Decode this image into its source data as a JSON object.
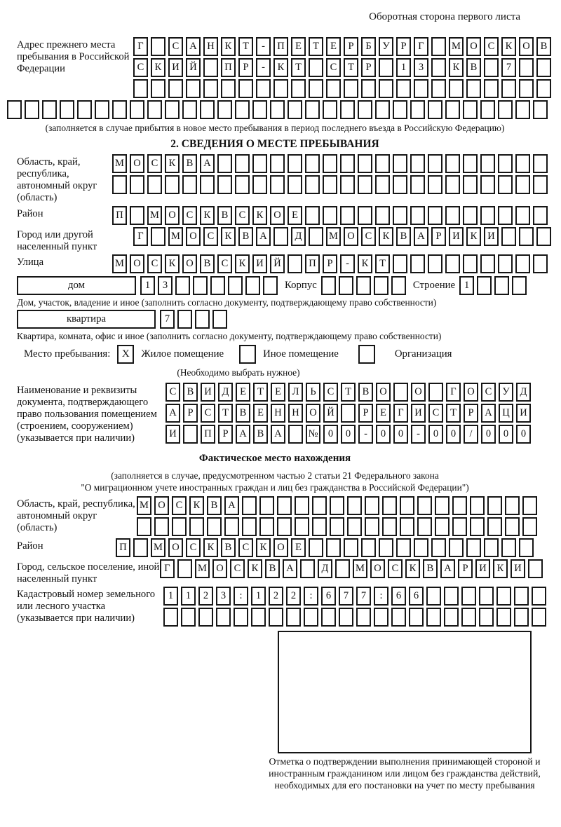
{
  "page": {
    "top_note": "Оборотная сторона первого листа"
  },
  "prev_address": {
    "label": "Адрес прежнего места пребывания в Российской Федерации",
    "row1": {
      "t": "Г САНКТ-ПЕТЕРБУРГ МОСКОВ",
      "n": 24
    },
    "row2": {
      "t": "СКИЙ ПР-КТ СТР 13 КВ 7",
      "n": 24
    },
    "row3": {
      "t": "",
      "n": 24
    },
    "row4": {
      "t": "",
      "n": 31
    },
    "note": "(заполняется в случае прибытия в новое место пребывания в период последнего въезда в Российскую Федерацию)"
  },
  "section2": {
    "title": "2. СВЕДЕНИЯ О МЕСТЕ ПРЕБЫВАНИЯ",
    "region": {
      "label": "Область, край, республика, автономный округ (область)",
      "row1": {
        "t": "МОСКВА",
        "n": 25
      },
      "row2": {
        "t": "",
        "n": 25
      }
    },
    "district": {
      "label": "Район",
      "row": {
        "t": "П МОСКВСКОЕ",
        "n": 25
      }
    },
    "city": {
      "label": "Город или другой населенный пункт",
      "row": {
        "t": "Г МОСКВА Д МОСКВАРИКИ",
        "n": 24
      }
    },
    "street": {
      "label": "Улица",
      "row": {
        "t": "МОСКОВСКИЙ ПР-КТ",
        "n": 25
      }
    },
    "house": {
      "box_label": "дом",
      "number": {
        "t": "13",
        "n": 8
      },
      "korpus_label": "Корпус",
      "korpus": {
        "t": "",
        "n": 5
      },
      "stroenie_label": "Строение",
      "stroenie": {
        "t": "1",
        "n": 4
      }
    },
    "house_note": "Дом, участок, владение и иное (заполнить согласно документу, подтверждающему право собственности)",
    "apartment": {
      "box_label": "квартира",
      "number": {
        "t": "7",
        "n": 4
      }
    },
    "apartment_note": "Квартира, комната, офис и иное (заполнить согласно документу, подтверждающему право собственности)",
    "stay": {
      "label": "Место пребывания:",
      "options": [
        {
          "mark": "X",
          "label": "Жилое помещение"
        },
        {
          "mark": "",
          "label": "Иное помещение"
        },
        {
          "mark": "",
          "label": "Организация"
        }
      ],
      "note": "(Необходимо выбрать нужное)"
    },
    "document": {
      "label": "Наименование и реквизиты документа, подтверждающего право пользования помещением (строением, сооружением) (указывается при наличии)",
      "row1": {
        "t": "СВИДЕТЕЛЬСТВО О ГОСУД",
        "n": 21
      },
      "row2": {
        "t": "АРСТВЕННОЙ РЕГИСТРАЦИ",
        "n": 21
      },
      "row3": {
        "t": "И ПРАВА №00-00-00/000",
        "n": 21
      }
    }
  },
  "section3": {
    "title": "Фактическое место нахождения",
    "note_line1": "(заполняется в случае, предусмотренном частью 2 статьи 21 Федерального закона",
    "note_line2": "\"О миграционном учете иностранных граждан и лиц без гражданства в Российской Федерации\")",
    "region": {
      "label": "Область, край, республика, автономный округ (область)",
      "row1": {
        "t": "МОСКВА",
        "n": 23
      },
      "row2": {
        "t": "",
        "n": 23
      }
    },
    "district": {
      "label": "Район",
      "row": {
        "t": "П МОСКВСКОЕ",
        "n": 24
      }
    },
    "city": {
      "label": "Город, сельское поселение, иной населенный пункт",
      "row": {
        "t": "Г МОСКВА Д МОСКВАРИКИ",
        "n": 22
      }
    },
    "cadastral": {
      "label": "Кадастровый номер земельного или лесного участка (указывается при наличии)",
      "row1": {
        "t": "1123:122:677:66",
        "n": 22
      },
      "row2": {
        "t": "",
        "n": 22
      }
    },
    "stamp_caption": "Отметка о подтверждении выполнения принимающей стороной и иностранным гражданином или лицом без гражданства действий, необходимых для его постановки на учет по месту пребывания"
  },
  "colors": {
    "ink": "#161616",
    "paper": "#ffffff"
  }
}
